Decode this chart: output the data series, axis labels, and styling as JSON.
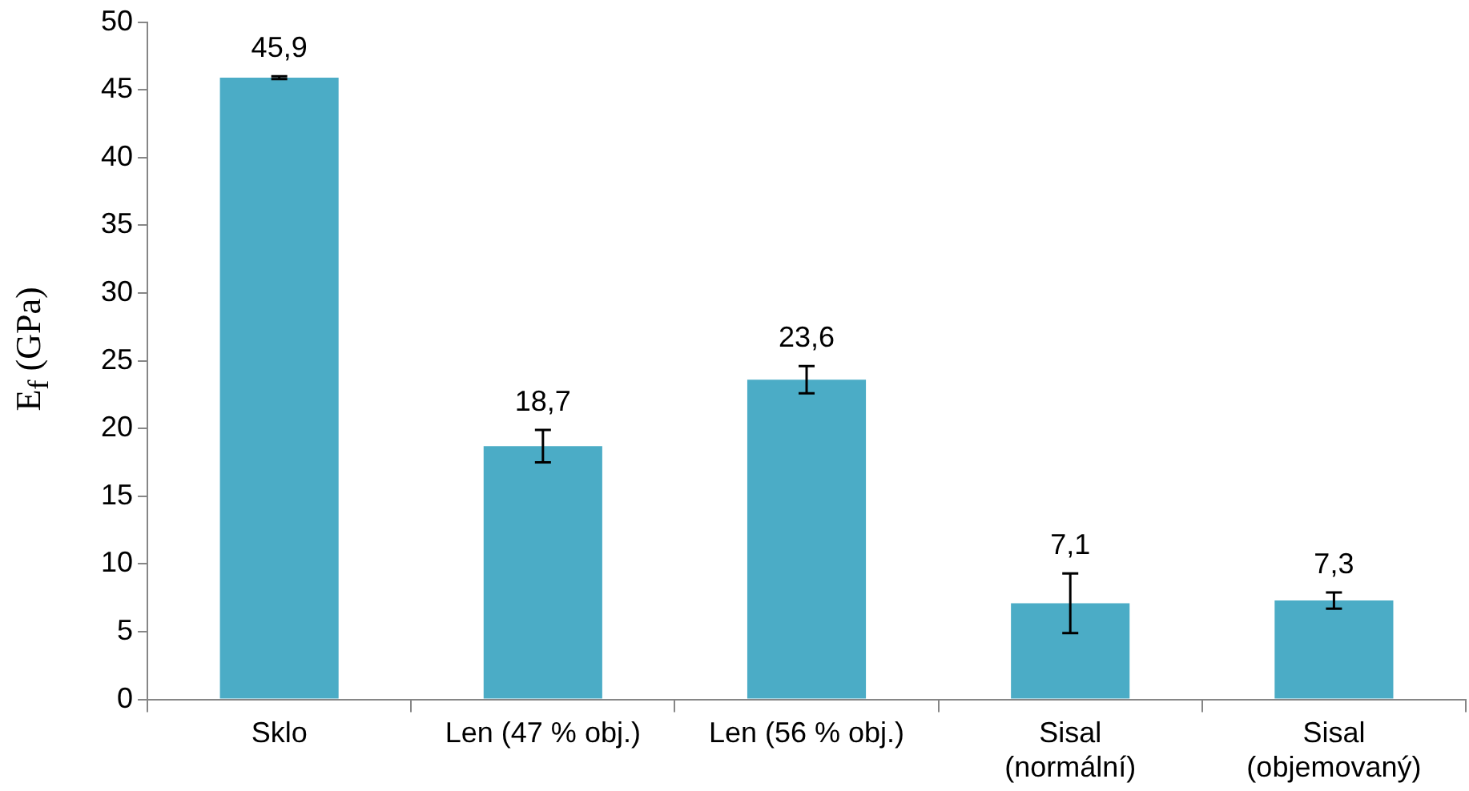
{
  "chart_data": {
    "type": "bar",
    "ylabel": "E$_{f}$ (GPa)",
    "categories": [
      "Sklo",
      "Len (47 % obj.)",
      "Len (56 % obj.)",
      "Sisal\n(normální)",
      "Sisal\n(objemovaný)"
    ],
    "values": [
      45.9,
      18.7,
      23.6,
      7.1,
      7.3
    ],
    "errors": [
      0.1,
      1.2,
      1.0,
      2.2,
      0.6
    ],
    "color": "#4bacc6",
    "ylim": [
      0,
      50
    ],
    "yticks": [
      0,
      5,
      10,
      15,
      20,
      25,
      30,
      35,
      40,
      45,
      50
    ],
    "value_labels": [
      "45,9",
      "18,7",
      "23,6",
      "7,1",
      "7,3"
    ],
    "grid": false,
    "legend": false
  }
}
